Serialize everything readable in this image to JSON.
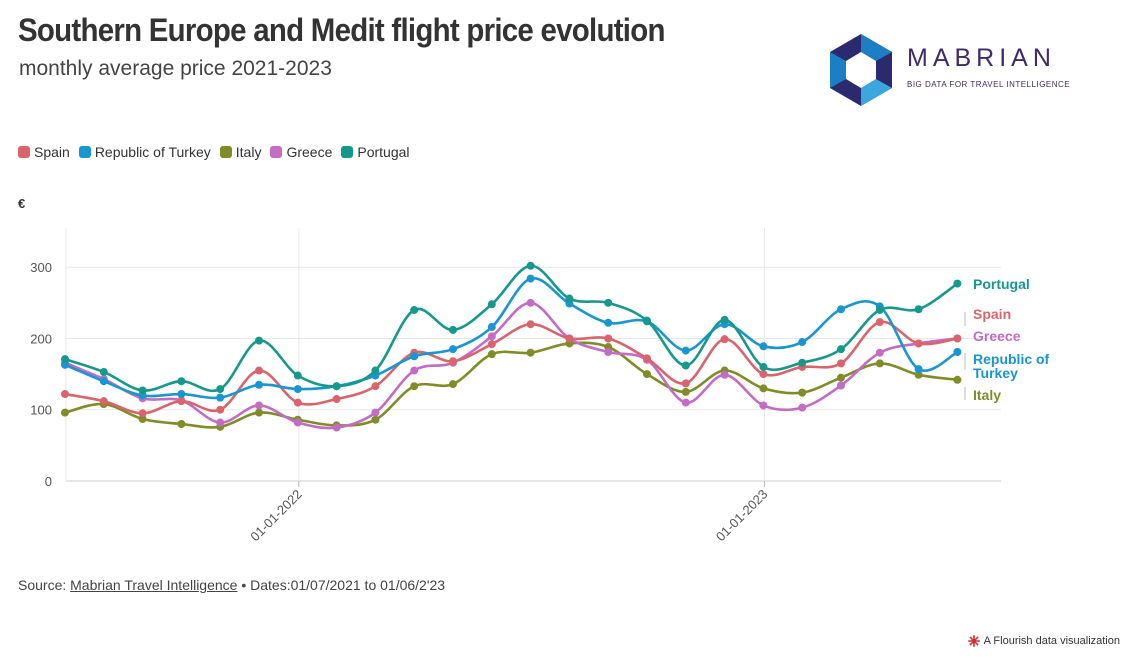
{
  "header": {
    "title": "Southern Europe and Medit flight price evolution",
    "subtitle": "monthly average price 2021-2023"
  },
  "logo": {
    "wordmark": "MABRIAN",
    "tagline": "BIG DATA FOR TRAVEL INTELLIGENCE",
    "colors": [
      "#2c2a6e",
      "#1c7fc4",
      "#3aa7de"
    ]
  },
  "legend": {
    "items": [
      {
        "label": "Spain",
        "color": "#d9646c"
      },
      {
        "label": "Republic of Turkey",
        "color": "#1996d1"
      },
      {
        "label": "Italy",
        "color": "#808c26"
      },
      {
        "label": "Greece",
        "color": "#c26cc3"
      },
      {
        "label": "Portugal",
        "color": "#16998c"
      }
    ]
  },
  "chart_data": {
    "type": "line",
    "unit_label": "€",
    "x_tick_labels": [
      "01-01-2022",
      "01-01-2023"
    ],
    "x_tick_indices": [
      6,
      18
    ],
    "y_ticks": [
      0,
      100,
      200,
      300
    ],
    "ylim": [
      0,
      355
    ],
    "grid": true,
    "x": [
      "2021-07",
      "2021-08",
      "2021-09",
      "2021-10",
      "2021-11",
      "2021-12",
      "2022-01",
      "2022-02",
      "2022-03",
      "2022-04",
      "2022-05",
      "2022-06",
      "2022-07",
      "2022-08",
      "2022-09",
      "2022-10",
      "2022-11",
      "2022-12",
      "2023-01",
      "2023-02",
      "2023-03",
      "2023-04",
      "2023-05",
      "2023-06"
    ],
    "series": [
      {
        "name": "Spain",
        "color": "#d9646c",
        "values": [
          122,
          112,
          95,
          112,
          100,
          155,
          110,
          115,
          133,
          180,
          168,
          192,
          220,
          200,
          200,
          172,
          137,
          199,
          150,
          160,
          165,
          223,
          193,
          200
        ]
      },
      {
        "name": "Republic of Turkey",
        "color": "#1996d1",
        "values": [
          163,
          140,
          120,
          122,
          117,
          135,
          129,
          133,
          148,
          175,
          185,
          216,
          284,
          249,
          222,
          224,
          183,
          220,
          189,
          195,
          241,
          245,
          157,
          181
        ]
      },
      {
        "name": "Italy",
        "color": "#808c26",
        "values": [
          96,
          108,
          87,
          80,
          76,
          96,
          86,
          78,
          86,
          133,
          136,
          178,
          180,
          193,
          188,
          150,
          125,
          155,
          130,
          124,
          145,
          165,
          149,
          142
        ]
      },
      {
        "name": "Greece",
        "color": "#c26cc3",
        "values": [
          166,
          143,
          116,
          113,
          82,
          106,
          82,
          75,
          96,
          155,
          166,
          203,
          250,
          200,
          181,
          170,
          110,
          149,
          106,
          103,
          134,
          180,
          193,
          200
        ]
      },
      {
        "name": "Portugal",
        "color": "#16998c",
        "values": [
          171,
          153,
          127,
          140,
          129,
          197,
          148,
          133,
          155,
          240,
          212,
          248,
          302,
          256,
          250,
          225,
          162,
          226,
          160,
          166,
          185,
          240,
          241,
          277
        ]
      }
    ],
    "end_labels": [
      {
        "series": "Portugal",
        "text": "Portugal"
      },
      {
        "series": "Spain",
        "text": "Spain"
      },
      {
        "series": "Greece",
        "text": "Greece"
      },
      {
        "series": "Republic of Turkey",
        "text": "Republic of Turkey"
      },
      {
        "series": "Italy",
        "text": "Italy"
      }
    ]
  },
  "footer": {
    "source_prefix": "Source: ",
    "source_link": "Mabrian Travel Intelligence",
    "dates": " • Dates:01/07/2021 to 01/06/2'23",
    "credit": "A Flourish data visualization"
  }
}
